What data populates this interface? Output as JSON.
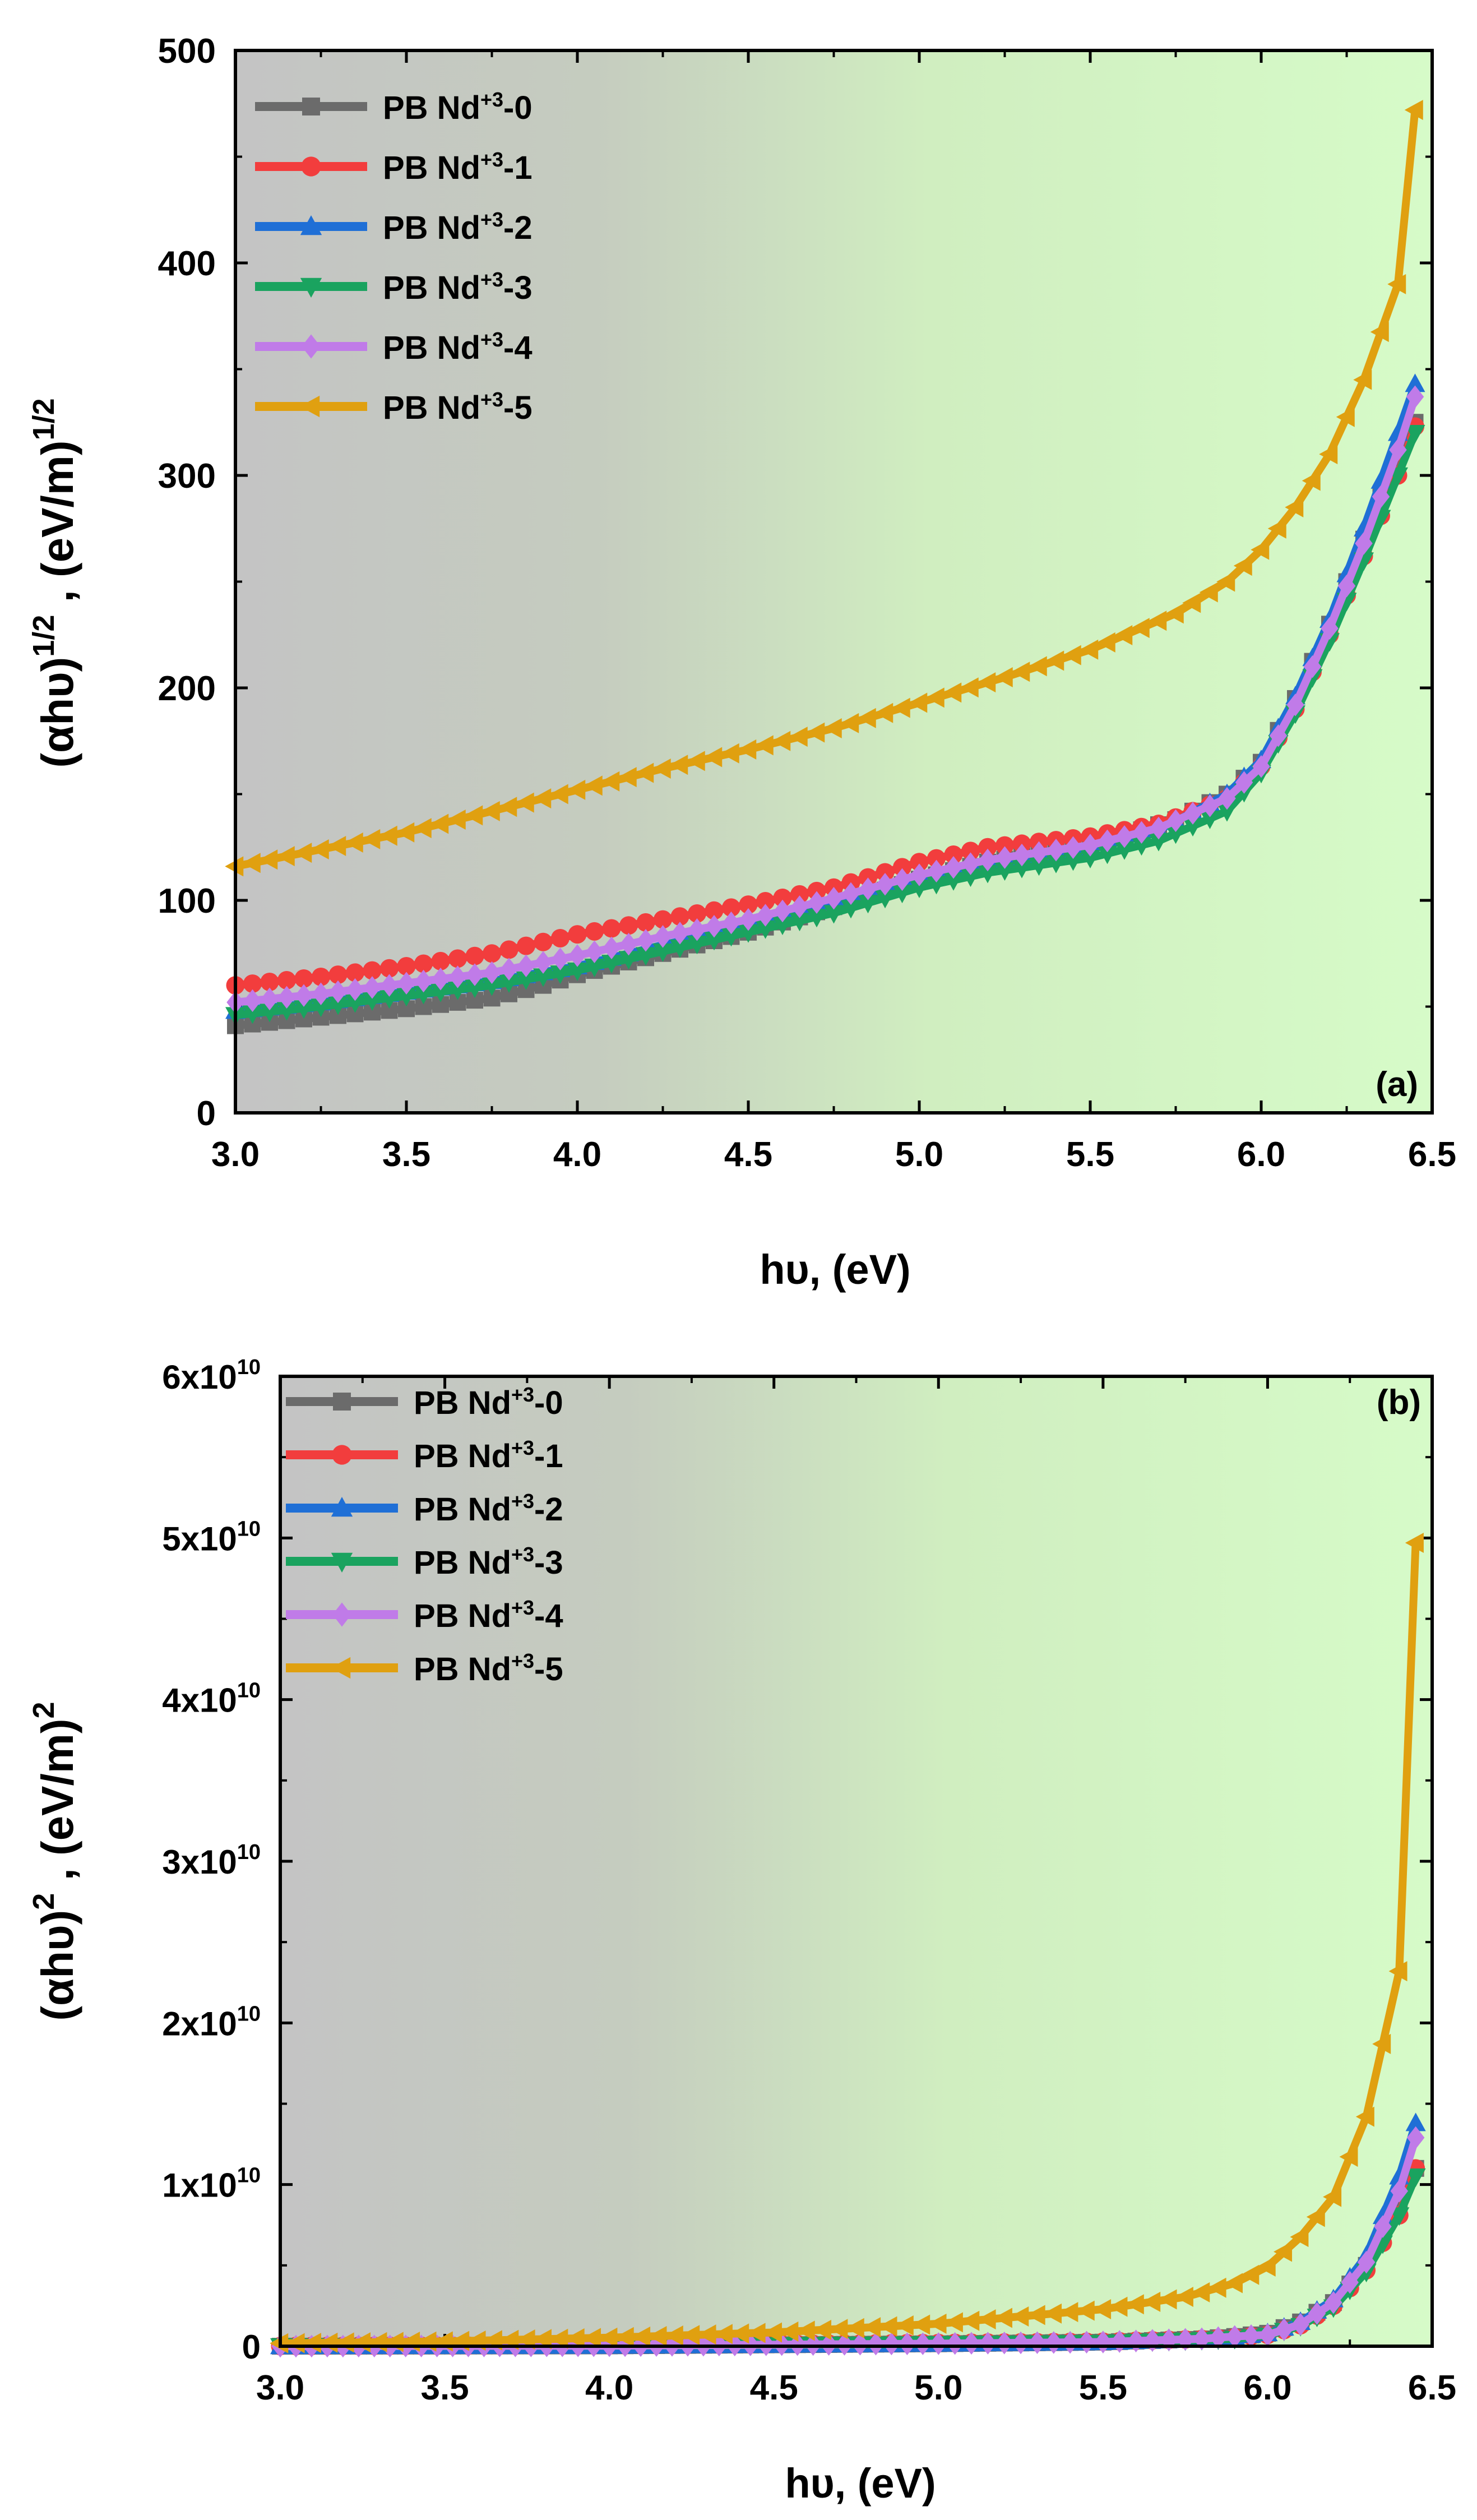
{
  "chart_data": [
    {
      "type": "line",
      "panel_label": "(a)",
      "xlabel_main": "hυ, (eV)",
      "ylabel_base": "(αhυ)",
      "ylabel_exp1": "1/2",
      "ylabel_mid": " , (eV/m)",
      "ylabel_exp2": "1/2",
      "xlim": [
        3.0,
        6.5
      ],
      "ylim": [
        0,
        500
      ],
      "xticks": [
        3.0,
        3.5,
        4.0,
        4.5,
        5.0,
        5.5,
        6.0,
        6.5
      ],
      "xtick_labels": [
        "3.0",
        "3.5",
        "4.0",
        "4.5",
        "5.0",
        "5.5",
        "6.0",
        "6.5"
      ],
      "yticks": [
        0,
        100,
        200,
        300,
        400,
        500
      ],
      "ytick_labels": [
        "0",
        "100",
        "200",
        "300",
        "400",
        "500"
      ],
      "legend_position": "top-left",
      "series": [
        {
          "name_base": "PB Nd",
          "name_sup": "+3",
          "name_suffix": "-0",
          "color": "#6b6b6b",
          "marker": "square",
          "points": [
            [
              3.0,
              41
            ],
            [
              3.25,
              45
            ],
            [
              3.5,
              49
            ],
            [
              3.75,
              54
            ],
            [
              3.9,
              60
            ],
            [
              4.0,
              65
            ],
            [
              4.25,
              75
            ],
            [
              4.5,
              85
            ],
            [
              4.75,
              97
            ],
            [
              5.0,
              110
            ],
            [
              5.2,
              118
            ],
            [
              5.5,
              126
            ],
            [
              5.75,
              138
            ],
            [
              5.9,
              150
            ],
            [
              6.0,
              165
            ],
            [
              6.1,
              195
            ],
            [
              6.2,
              230
            ],
            [
              6.3,
              270
            ],
            [
              6.4,
              310
            ],
            [
              6.45,
              325
            ]
          ]
        },
        {
          "name_base": "PB Nd",
          "name_sup": "+3",
          "name_suffix": "-1",
          "color": "#f23d3d",
          "marker": "circle",
          "points": [
            [
              3.0,
              60
            ],
            [
              3.25,
              64
            ],
            [
              3.5,
              69
            ],
            [
              3.75,
              75
            ],
            [
              4.0,
              84
            ],
            [
              4.25,
              91
            ],
            [
              4.5,
              98
            ],
            [
              4.75,
              106
            ],
            [
              5.0,
              118
            ],
            [
              5.2,
              125
            ],
            [
              5.5,
              130
            ],
            [
              5.7,
              136
            ],
            [
              5.9,
              148
            ],
            [
              6.0,
              163
            ],
            [
              6.1,
              190
            ],
            [
              6.2,
              225
            ],
            [
              6.3,
              262
            ],
            [
              6.4,
              300
            ],
            [
              6.45,
              323
            ]
          ]
        },
        {
          "name_base": "PB Nd",
          "name_sup": "+3",
          "name_suffix": "-2",
          "color": "#1f6fd6",
          "marker": "triangle-up",
          "points": [
            [
              3.0,
              48
            ],
            [
              3.25,
              52
            ],
            [
              3.5,
              57
            ],
            [
              3.75,
              62
            ],
            [
              4.0,
              69
            ],
            [
              4.25,
              79
            ],
            [
              4.5,
              88
            ],
            [
              4.75,
              99
            ],
            [
              5.0,
              111
            ],
            [
              5.2,
              118
            ],
            [
              5.5,
              125
            ],
            [
              5.7,
              133
            ],
            [
              5.9,
              150
            ],
            [
              6.0,
              166
            ],
            [
              6.1,
              196
            ],
            [
              6.2,
              232
            ],
            [
              6.3,
              275
            ],
            [
              6.4,
              320
            ],
            [
              6.45,
              343
            ]
          ]
        },
        {
          "name_base": "PB Nd",
          "name_sup": "+3",
          "name_suffix": "-3",
          "color": "#1aa35f",
          "marker": "triangle-down",
          "points": [
            [
              3.0,
              46
            ],
            [
              3.25,
              50
            ],
            [
              3.5,
              55
            ],
            [
              3.75,
              60
            ],
            [
              4.0,
              67
            ],
            [
              4.25,
              76
            ],
            [
              4.5,
              85
            ],
            [
              4.75,
              94
            ],
            [
              5.0,
              106
            ],
            [
              5.2,
              113
            ],
            [
              5.5,
              120
            ],
            [
              5.7,
              128
            ],
            [
              5.9,
              142
            ],
            [
              6.0,
              160
            ],
            [
              6.1,
              188
            ],
            [
              6.2,
              222
            ],
            [
              6.3,
              260
            ],
            [
              6.4,
              300
            ],
            [
              6.45,
              320
            ]
          ]
        },
        {
          "name_base": "PB Nd",
          "name_sup": "+3",
          "name_suffix": "-4",
          "color": "#c07be8",
          "marker": "diamond",
          "points": [
            [
              3.0,
              52
            ],
            [
              3.25,
              56
            ],
            [
              3.5,
              61
            ],
            [
              3.75,
              66
            ],
            [
              4.0,
              74
            ],
            [
              4.25,
              83
            ],
            [
              4.5,
              91
            ],
            [
              4.75,
              101
            ],
            [
              5.0,
              112
            ],
            [
              5.2,
              119
            ],
            [
              5.5,
              126
            ],
            [
              5.7,
              134
            ],
            [
              5.9,
              148
            ],
            [
              6.0,
              163
            ],
            [
              6.1,
              192
            ],
            [
              6.2,
              228
            ],
            [
              6.3,
              268
            ],
            [
              6.4,
              312
            ],
            [
              6.45,
              337
            ]
          ]
        },
        {
          "name_base": "PB Nd",
          "name_sup": "+3",
          "name_suffix": "-5",
          "color": "#e0a010",
          "marker": "triangle-left",
          "points": [
            [
              3.0,
              116
            ],
            [
              3.25,
              124
            ],
            [
              3.5,
              132
            ],
            [
              3.75,
              142
            ],
            [
              4.0,
              152
            ],
            [
              4.25,
              162
            ],
            [
              4.5,
              171
            ],
            [
              4.75,
              181
            ],
            [
              5.0,
              193
            ],
            [
              5.25,
              205
            ],
            [
              5.5,
              218
            ],
            [
              5.75,
              235
            ],
            [
              5.9,
              250
            ],
            [
              6.0,
              265
            ],
            [
              6.1,
              285
            ],
            [
              6.2,
              310
            ],
            [
              6.3,
              345
            ],
            [
              6.4,
              390
            ],
            [
              6.45,
              472
            ]
          ]
        }
      ]
    },
    {
      "type": "line",
      "panel_label": "(b)",
      "xlabel_main": "hυ, (eV)",
      "ylabel_base": "(αhυ)",
      "ylabel_exp1": "2",
      "ylabel_mid": " , (eV/m)",
      "ylabel_exp2": "2",
      "xlim": [
        3.0,
        6.5
      ],
      "ylim": [
        0,
        60000000000
      ],
      "xticks": [
        3.0,
        3.5,
        4.0,
        4.5,
        5.0,
        5.5,
        6.0,
        6.5
      ],
      "xtick_labels": [
        "3.0",
        "3.5",
        "4.0",
        "4.5",
        "5.0",
        "5.5",
        "6.0",
        "6.5"
      ],
      "yticks": [
        0,
        10000000000,
        20000000000,
        30000000000,
        40000000000,
        50000000000,
        60000000000
      ],
      "ytick_labels": [
        {
          "base": "0",
          "exp": ""
        },
        {
          "base": "1x10",
          "exp": "10"
        },
        {
          "base": "2x10",
          "exp": "10"
        },
        {
          "base": "3x10",
          "exp": "10"
        },
        {
          "base": "4x10",
          "exp": "10"
        },
        {
          "base": "5x10",
          "exp": "10"
        },
        {
          "base": "6x10",
          "exp": "10"
        }
      ],
      "legend_position": "top-left",
      "series": [
        {
          "name_base": "PB Nd",
          "name_sup": "+3",
          "name_suffix": "-0",
          "color": "#6b6b6b",
          "marker": "square",
          "points": [
            [
              3.0,
              0
            ],
            [
              4.0,
              20000000
            ],
            [
              5.0,
              150000000
            ],
            [
              5.5,
              250000000
            ],
            [
              5.8,
              450000000
            ],
            [
              5.9,
              600000000
            ],
            [
              6.0,
              800000000
            ],
            [
              6.1,
              1500000000
            ],
            [
              6.2,
              2700000000
            ],
            [
              6.3,
              5000000000
            ],
            [
              6.4,
              8800000000
            ],
            [
              6.45,
              11000000000
            ]
          ]
        },
        {
          "name_base": "PB Nd",
          "name_sup": "+3",
          "name_suffix": "-1",
          "color": "#f23d3d",
          "marker": "circle",
          "points": [
            [
              3.0,
              10000000
            ],
            [
              4.0,
              50000000
            ],
            [
              5.0,
              200000000
            ],
            [
              5.5,
              280000000
            ],
            [
              5.8,
              450000000
            ],
            [
              5.9,
              550000000
            ],
            [
              6.0,
              700000000
            ],
            [
              6.1,
              1300000000
            ],
            [
              6.2,
              2500000000
            ],
            [
              6.3,
              4700000000
            ],
            [
              6.4,
              8100000000
            ],
            [
              6.45,
              11000000000
            ]
          ]
        },
        {
          "name_base": "PB Nd",
          "name_sup": "+3",
          "name_suffix": "-2",
          "color": "#1f6fd6",
          "marker": "triangle-up",
          "points": [
            [
              3.0,
              0
            ],
            [
              4.0,
              25000000
            ],
            [
              5.0,
              150000000
            ],
            [
              5.5,
              250000000
            ],
            [
              5.8,
              450000000
            ],
            [
              5.9,
              600000000
            ],
            [
              6.0,
              800000000
            ],
            [
              6.1,
              1500000000
            ],
            [
              6.2,
              2900000000
            ],
            [
              6.3,
              5600000000
            ],
            [
              6.4,
              10500000000
            ],
            [
              6.45,
              13800000000
            ]
          ]
        },
        {
          "name_base": "PB Nd",
          "name_sup": "+3",
          "name_suffix": "-3",
          "color": "#1aa35f",
          "marker": "triangle-down",
          "points": [
            [
              3.0,
              0
            ],
            [
              4.0,
              20000000
            ],
            [
              5.0,
              130000000
            ],
            [
              5.5,
              210000000
            ],
            [
              5.8,
              380000000
            ],
            [
              5.9,
              450000000
            ],
            [
              6.0,
              650000000
            ],
            [
              6.1,
              1250000000
            ],
            [
              6.2,
              2400000000
            ],
            [
              6.3,
              4600000000
            ],
            [
              6.4,
              8100000000
            ],
            [
              6.45,
              10500000000
            ]
          ]
        },
        {
          "name_base": "PB Nd",
          "name_sup": "+3",
          "name_suffix": "-4",
          "color": "#c07be8",
          "marker": "diamond",
          "points": [
            [
              3.0,
              0
            ],
            [
              4.0,
              30000000
            ],
            [
              5.0,
              160000000
            ],
            [
              5.5,
              260000000
            ],
            [
              5.8,
              460000000
            ],
            [
              5.9,
              600000000
            ],
            [
              6.0,
              700000000
            ],
            [
              6.1,
              1350000000
            ],
            [
              6.2,
              2700000000
            ],
            [
              6.3,
              5200000000
            ],
            [
              6.4,
              9600000000
            ],
            [
              6.45,
              12900000000
            ]
          ]
        },
        {
          "name_base": "PB Nd",
          "name_sup": "+3",
          "name_suffix": "-5",
          "color": "#e0a010",
          "marker": "triangle-left",
          "points": [
            [
              3.0,
              180000000
            ],
            [
              3.5,
              300000000
            ],
            [
              4.0,
              530000000
            ],
            [
              4.5,
              850000000
            ],
            [
              5.0,
              1390000000
            ],
            [
              5.5,
              2290000000
            ],
            [
              5.75,
              3050000000
            ],
            [
              5.9,
              3900000000
            ],
            [
              6.0,
              4930000000
            ],
            [
              6.1,
              6760000000
            ],
            [
              6.2,
              9240000000
            ],
            [
              6.3,
              14200000000
            ],
            [
              6.4,
              23200000000
            ],
            [
              6.45,
              49700000000
            ]
          ]
        }
      ]
    }
  ]
}
